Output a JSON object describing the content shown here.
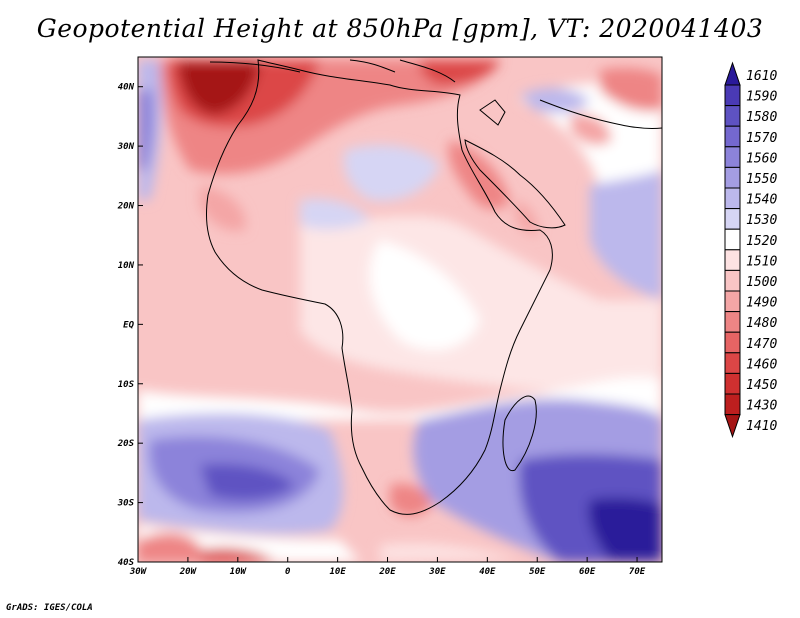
{
  "title": "Geopotential Height at 850hPa [gpm], VT: 2020041403",
  "footer": "GrADS: IGES/COLA",
  "map": {
    "variable": "Geopotential Height",
    "level": "850hPa",
    "units": "gpm",
    "valid_time": "2020041403",
    "region": "Africa",
    "lon_range": [
      -30,
      75
    ],
    "lat_range": [
      -40,
      45
    ],
    "lon_ticks": [
      "30W",
      "20W",
      "10W",
      "0",
      "10E",
      "20E",
      "30E",
      "40E",
      "50E",
      "60E",
      "70E"
    ],
    "lon_values": [
      -30,
      -20,
      -10,
      0,
      10,
      20,
      30,
      40,
      50,
      60,
      70
    ],
    "lat_ticks": [
      "40N",
      "30N",
      "20N",
      "10N",
      "EQ",
      "10S",
      "20S",
      "30S",
      "40S"
    ],
    "lat_values": [
      40,
      30,
      20,
      10,
      0,
      -10,
      -20,
      -30,
      -40
    ]
  },
  "colorbar": {
    "labels": [
      "1610",
      "1590",
      "1580",
      "1570",
      "1560",
      "1550",
      "1540",
      "1530",
      "1520",
      "1510",
      "1500",
      "1490",
      "1480",
      "1470",
      "1460",
      "1450",
      "1430",
      "1410"
    ],
    "colors": [
      "#2a1a9a",
      "#4a3ab5",
      "#5e52c2",
      "#7468cf",
      "#8c83da",
      "#a49de3",
      "#bcb8ec",
      "#d6d5f4",
      "#ffffff",
      "#fde2e2",
      "#f9c5c5",
      "#f4a6a6",
      "#ee8585",
      "#e66464",
      "#dc4646",
      "#cf3030",
      "#bd1f1f",
      "#a51515"
    ]
  }
}
